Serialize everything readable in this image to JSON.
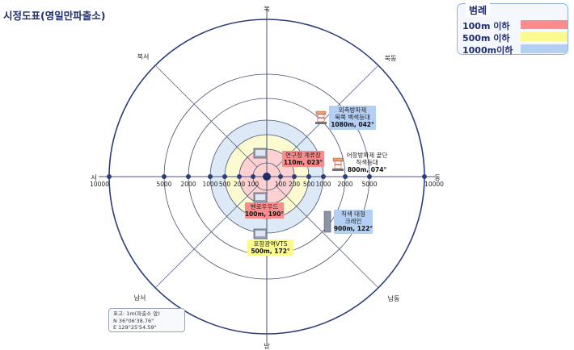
{
  "title": "시정도표(영일만파출소)",
  "directions": {
    "n": "북",
    "ne": "북동",
    "e": "동",
    "se": "남동",
    "s": "남",
    "sw": "남서",
    "w": "서",
    "nw": "북서"
  },
  "scale": {
    "center": "0",
    "right": [
      "100",
      "200",
      "500",
      "1000",
      "2000",
      "5000",
      "10000"
    ],
    "left": [
      "100",
      "200",
      "500",
      "1000",
      "2000",
      "5000",
      "10000"
    ]
  },
  "zones": [
    {
      "distance_m": 100,
      "color": "#fdd1d1"
    },
    {
      "distance_m": 500,
      "color": "#fcfad1"
    },
    {
      "distance_m": 1000,
      "color": "#dde9f7"
    }
  ],
  "legend": {
    "title": "범례",
    "items": [
      {
        "label": "100m 이하",
        "color": "#f98d8d"
      },
      {
        "label": "500m 이하",
        "color": "#fafa8e"
      },
      {
        "label": "1000m이하",
        "color": "#b4cff4"
      }
    ]
  },
  "targets": [
    {
      "name": "연구정 계류장",
      "info": "110m, 023°",
      "color": "#f98d8d",
      "icon": "building-icon"
    },
    {
      "name": "벤로우우드",
      "info": "100m, 190°",
      "color": "#f98d8d",
      "icon": "building-icon"
    },
    {
      "name": "포항광역VTS",
      "info": "500m, 172°",
      "color": "#fafa8e",
      "icon": "building-icon"
    },
    {
      "name": "직색 대형\n크레인",
      "info": "900m, 122°",
      "color": "#b4cff4",
      "icon": "crane-icon"
    },
    {
      "name": "어항방파제 끝단\n직색등대",
      "info": "800m, 074°",
      "color": "",
      "icon": "lighthouse-icon"
    },
    {
      "name": "외측방파제\n북쪽 백색등대",
      "info": "1080m, 042°",
      "color": "#b4cff4",
      "icon": "lighthouse-icon"
    }
  ],
  "observer": {
    "height": "표고: 1m(파출소 앞)",
    "lat": "N 36°06'38.76\"",
    "lon": "E 129°25'54.59\""
  }
}
